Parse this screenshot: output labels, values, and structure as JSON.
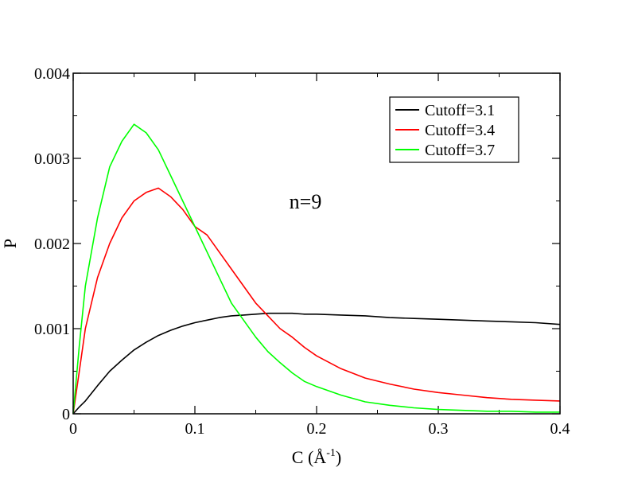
{
  "chart_data": {
    "type": "line",
    "xlabel": "C (Å",
    "xlabel_superscript": "-1",
    "xlabel_close": ")",
    "ylabel": "P",
    "xlim": [
      0,
      0.4
    ],
    "ylim": [
      0,
      0.004
    ],
    "x_ticks": [
      {
        "value": 0,
        "label": "0"
      },
      {
        "value": 0.1,
        "label": "0.1"
      },
      {
        "value": 0.2,
        "label": "0.2"
      },
      {
        "value": 0.3,
        "label": "0.3"
      },
      {
        "value": 0.4,
        "label": "0.4"
      }
    ],
    "y_ticks": [
      {
        "value": 0,
        "label": "0"
      },
      {
        "value": 0.001,
        "label": "0.001"
      },
      {
        "value": 0.002,
        "label": "0.002"
      },
      {
        "value": 0.003,
        "label": "0.003"
      },
      {
        "value": 0.004,
        "label": "0.004"
      }
    ],
    "x_minor_step": 0.05,
    "y_minor_step": 0.0005,
    "grid": false,
    "legend_position": "top-right",
    "annotation": "n=9",
    "series": [
      {
        "name": "Cutoff=3.1",
        "color": "#000000",
        "x": [
          0,
          0.005,
          0.01,
          0.02,
          0.03,
          0.04,
          0.05,
          0.06,
          0.07,
          0.08,
          0.09,
          0.1,
          0.11,
          0.12,
          0.13,
          0.14,
          0.15,
          0.16,
          0.17,
          0.18,
          0.19,
          0.2,
          0.22,
          0.24,
          0.26,
          0.28,
          0.3,
          0.32,
          0.34,
          0.36,
          0.38,
          0.4
        ],
        "values": [
          0,
          8e-05,
          0.00015,
          0.00033,
          0.0005,
          0.00063,
          0.00075,
          0.00084,
          0.00092,
          0.00098,
          0.00103,
          0.00107,
          0.0011,
          0.00113,
          0.00115,
          0.00116,
          0.00117,
          0.00118,
          0.00118,
          0.00118,
          0.00117,
          0.00117,
          0.00116,
          0.00115,
          0.00113,
          0.00112,
          0.00111,
          0.0011,
          0.00109,
          0.00108,
          0.00107,
          0.00105
        ]
      },
      {
        "name": "Cutoff=3.4",
        "color": "#ff0000",
        "x": [
          0,
          0.005,
          0.01,
          0.02,
          0.03,
          0.04,
          0.05,
          0.06,
          0.07,
          0.08,
          0.09,
          0.1,
          0.11,
          0.12,
          0.13,
          0.14,
          0.15,
          0.16,
          0.17,
          0.18,
          0.19,
          0.2,
          0.22,
          0.24,
          0.26,
          0.28,
          0.3,
          0.32,
          0.34,
          0.36,
          0.38,
          0.4
        ],
        "values": [
          0,
          0.0005,
          0.001,
          0.0016,
          0.002,
          0.0023,
          0.0025,
          0.0026,
          0.00265,
          0.00255,
          0.0024,
          0.0022,
          0.0021,
          0.0019,
          0.0017,
          0.0015,
          0.0013,
          0.00115,
          0.001,
          0.0009,
          0.00078,
          0.00068,
          0.00053,
          0.00042,
          0.00035,
          0.00029,
          0.00025,
          0.00022,
          0.00019,
          0.00017,
          0.00016,
          0.00015
        ]
      },
      {
        "name": "Cutoff=3.7",
        "color": "#00ff00",
        "x": [
          0,
          0.005,
          0.01,
          0.02,
          0.03,
          0.04,
          0.05,
          0.06,
          0.07,
          0.08,
          0.09,
          0.1,
          0.11,
          0.12,
          0.13,
          0.14,
          0.15,
          0.16,
          0.17,
          0.18,
          0.19,
          0.2,
          0.22,
          0.24,
          0.26,
          0.28,
          0.3,
          0.32,
          0.34,
          0.36,
          0.38,
          0.4
        ],
        "values": [
          0,
          0.0008,
          0.0015,
          0.0023,
          0.0029,
          0.0032,
          0.0034,
          0.0033,
          0.0031,
          0.0028,
          0.0025,
          0.0022,
          0.0019,
          0.0016,
          0.0013,
          0.0011,
          0.0009,
          0.00073,
          0.0006,
          0.00048,
          0.00038,
          0.00032,
          0.00022,
          0.00014,
          0.0001,
          7e-05,
          5e-05,
          4e-05,
          3e-05,
          3e-05,
          2e-05,
          2e-05
        ]
      }
    ]
  }
}
